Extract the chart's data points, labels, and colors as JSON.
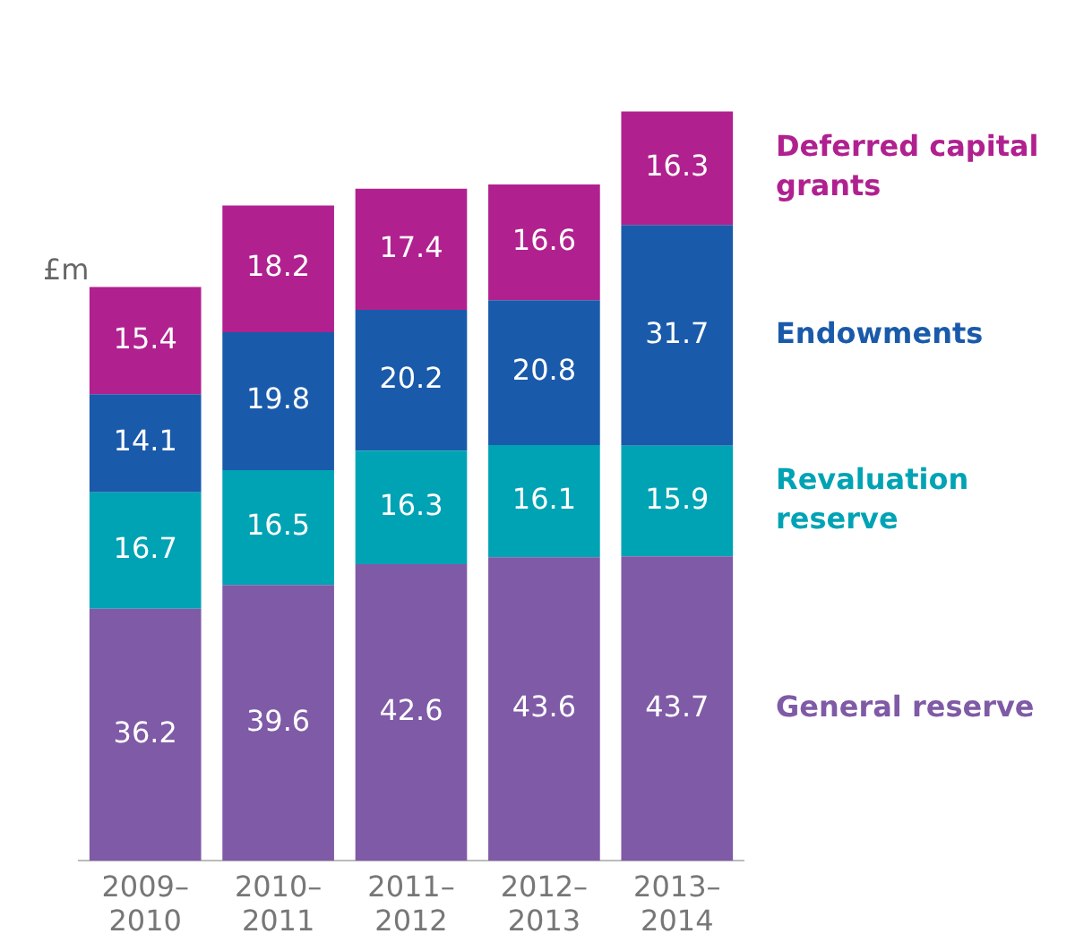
{
  "chart_data": {
    "type": "bar",
    "stacked": true,
    "data_labels": true,
    "legend": "right",
    "grid": false,
    "ylabel": "£m",
    "categories": [
      "2009–2010",
      "2010–2011",
      "2011–2012",
      "2012–2013",
      "2013–2014"
    ],
    "series": [
      {
        "name": "General reserve",
        "color": "#7f5aa6",
        "values": [
          36.2,
          39.6,
          42.6,
          43.6,
          43.7
        ]
      },
      {
        "name": "Revaluation reserve",
        "color": "#00a3b4",
        "values": [
          16.7,
          16.5,
          16.3,
          16.1,
          15.9
        ]
      },
      {
        "name": "Endowments",
        "color": "#1a5aab",
        "values": [
          14.1,
          19.8,
          20.2,
          20.8,
          31.7
        ]
      },
      {
        "name": "Deferred capital grants",
        "color": "#b0218f",
        "values": [
          15.4,
          18.2,
          17.4,
          16.6,
          16.3
        ]
      }
    ]
  }
}
